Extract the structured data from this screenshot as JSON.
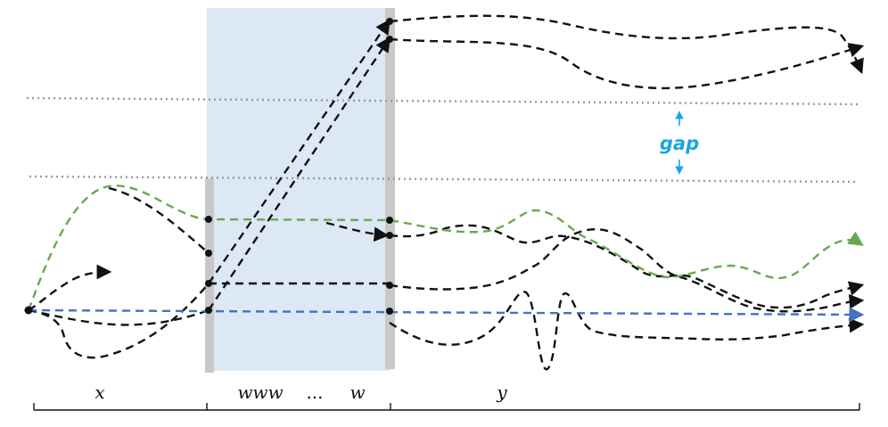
{
  "labels": {
    "x": "x",
    "www": "www",
    "dots": "...",
    "w": "w",
    "y": "y",
    "gap": "gap"
  },
  "colors": {
    "black_path": "#111111",
    "green_path": "#6aa84f",
    "blue_path": "#4472c4",
    "gap_annotation": "#1aa6e0",
    "shaded_region": "#dce8f5",
    "boundary_bar": "#c8c8c8",
    "guide_line": "#9a9a9a"
  }
}
